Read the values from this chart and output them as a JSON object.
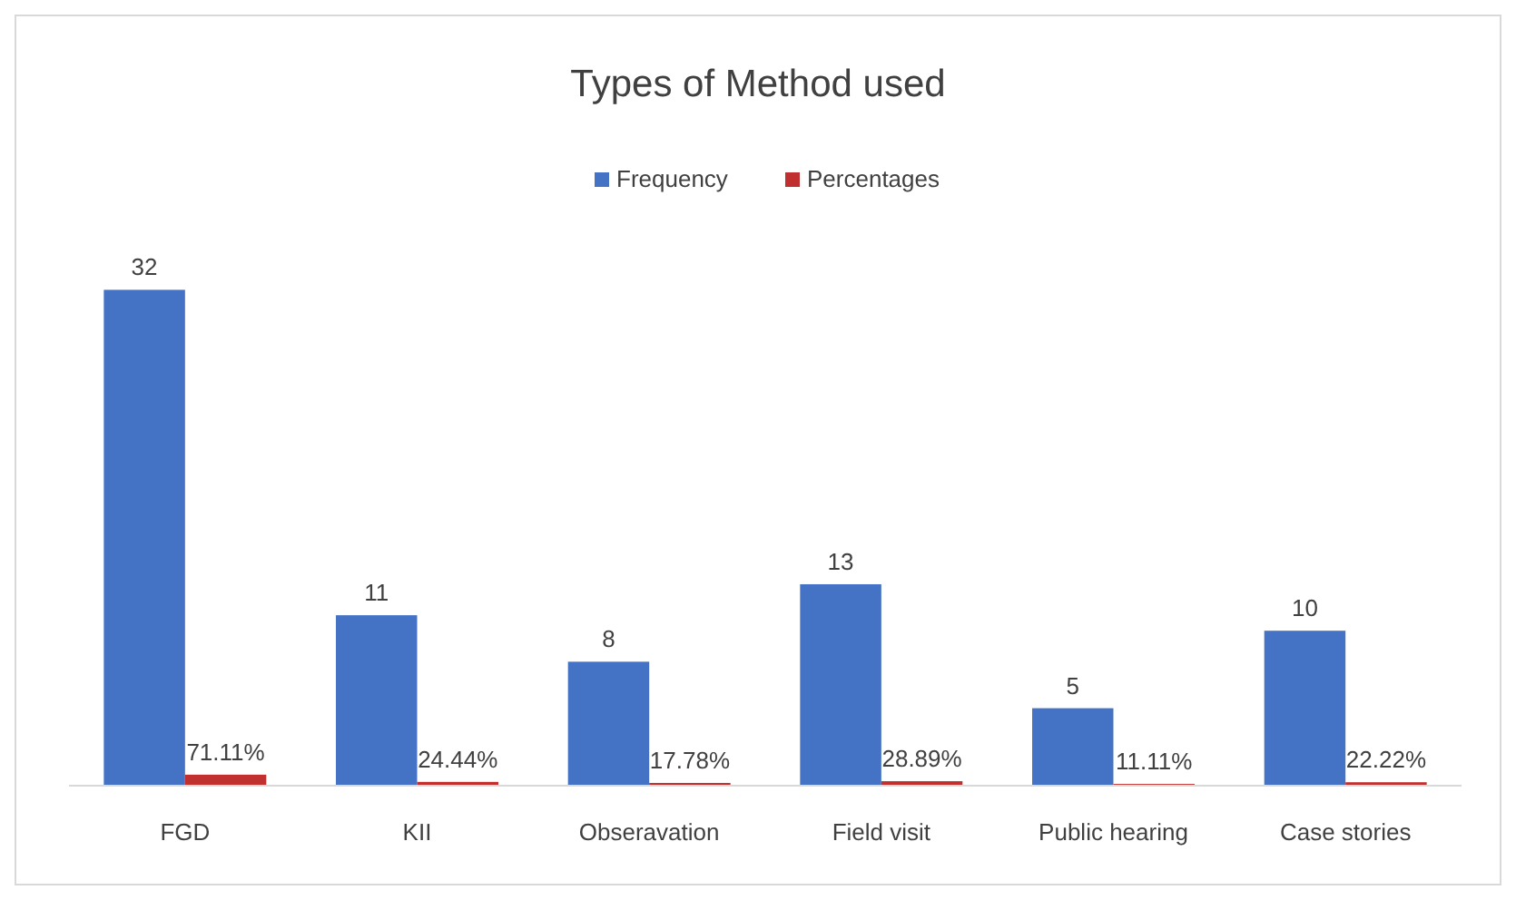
{
  "chart_data": {
    "type": "bar",
    "title": "Types of Method used",
    "categories": [
      "FGD",
      "KII",
      "Obseravation",
      "Field visit",
      "Public hearing",
      "Case stories"
    ],
    "series": [
      {
        "name": "Frequency",
        "color": "#4472c4",
        "values": [
          32,
          11,
          8,
          13,
          5,
          10
        ],
        "value_labels": [
          "32",
          "11",
          "8",
          "13",
          "5",
          "10"
        ]
      },
      {
        "name": "Percentages",
        "color": "#c0302e",
        "values": [
          0.7111,
          0.2444,
          0.1778,
          0.2889,
          0.1111,
          0.2222
        ],
        "value_labels": [
          "71.11%",
          "24.44%",
          "17.78%",
          "28.89%",
          "11.11%",
          "22.22%"
        ]
      }
    ],
    "tick_labels": "x",
    "legend": "top",
    "grid": false
  }
}
